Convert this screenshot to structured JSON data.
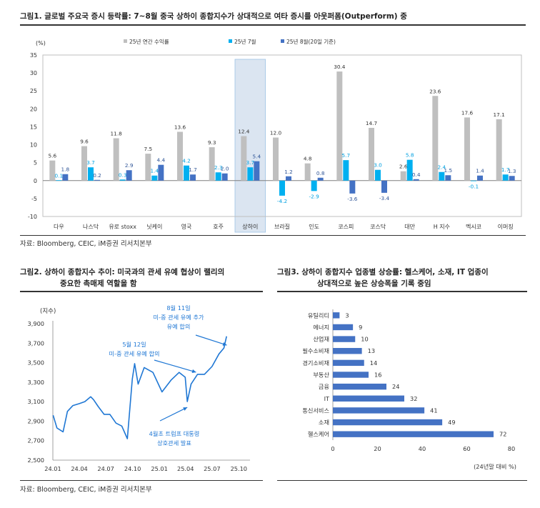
{
  "fig1": {
    "title": "그림1.  글로벌 주요국 증시 등락률: 7~8월 중국 상하이 종합지수가 상대적으로 여타 증시를 아웃퍼폼(Outperform) 중",
    "source": "자료: Bloomberg, CEIC, iM증권 리서치본부"
  },
  "fig2": {
    "title_line1": "그림2.  상하이 종합지수 추이: 미국과의 관세 유예 협상이 랠리의",
    "title_line2": "중요한 촉매제 역할을 함",
    "source": "자료: Bloomberg, CEIC, iM증권 리서치본부"
  },
  "fig3": {
    "title_line1": "그림3.  상하이 종합지수 업종별 상승률: 헬스케어, 소재, IT 업종이",
    "title_line2": "상대적으로 높은 상승폭을 기록 중임"
  },
  "colors": {
    "annual": "#bfbfbf",
    "july": "#00b0f0",
    "august": "#4472c4",
    "highlight": "#dbe5f1",
    "highlight_border": "#9dc3e6",
    "line": "#1f77d4"
  },
  "chart_data": [
    {
      "type": "bar",
      "unit": "(%)",
      "categories": [
        "다우",
        "나스닥",
        "유로 stoxx",
        "닛케이",
        "영국",
        "호주",
        "상하이",
        "브라질",
        "인도",
        "코스피",
        "코스닥",
        "대만",
        "H 지수",
        "멕시코",
        "이머징"
      ],
      "highlight_category": "상하이",
      "series": [
        {
          "name": "25년 연간 수익률",
          "values": [
            5.6,
            9.6,
            11.8,
            7.5,
            13.6,
            9.3,
            12.4,
            12.0,
            4.8,
            30.4,
            14.7,
            2.6,
            23.6,
            17.6,
            17.1
          ],
          "color": "#bfbfbf"
        },
        {
          "name": "25년 7월",
          "values": [
            0.1,
            3.7,
            0.3,
            1.4,
            4.2,
            2.3,
            3.7,
            -4.2,
            -2.9,
            5.7,
            3.0,
            5.8,
            2.4,
            -0.1,
            1.7
          ],
          "color": "#00b0f0"
        },
        {
          "name": "25년 8월(20일 기준)",
          "values": [
            1.8,
            0.2,
            2.9,
            4.4,
            1.7,
            2.0,
            5.4,
            1.2,
            0.8,
            -3.6,
            -3.4,
            0.4,
            1.5,
            1.4,
            1.3
          ],
          "color": "#4472c4"
        }
      ],
      "ylim": [
        -10,
        35
      ],
      "yticks": [
        -10,
        -5,
        0,
        5,
        10,
        15,
        20,
        25,
        30,
        35
      ],
      "legend": "top"
    },
    {
      "type": "line",
      "unit": "(지수)",
      "series": [
        {
          "name": "",
          "x": [
            "2024-01-02",
            "2024-01-15",
            "2024-02-05",
            "2024-02-20",
            "2024-03-10",
            "2024-04-01",
            "2024-04-20",
            "2024-05-10",
            "2024-05-20",
            "2024-06-05",
            "2024-06-25",
            "2024-07-15",
            "2024-08-05",
            "2024-08-25",
            "2024-09-13",
            "2024-09-30",
            "2024-10-08",
            "2024-10-20",
            "2024-11-10",
            "2024-12-10",
            "2025-01-10",
            "2025-02-10",
            "2025-03-10",
            "2025-03-31",
            "2025-04-07",
            "2025-04-20",
            "2025-05-12",
            "2025-06-05",
            "2025-07-01",
            "2025-07-25",
            "2025-08-11",
            "2025-08-20"
          ],
          "y": [
            2960,
            2830,
            2790,
            3000,
            3060,
            3080,
            3100,
            3150,
            3120,
            3050,
            2970,
            2970,
            2880,
            2850,
            2720,
            3330,
            3490,
            3280,
            3450,
            3400,
            3200,
            3320,
            3400,
            3350,
            3100,
            3280,
            3380,
            3380,
            3460,
            3590,
            3650,
            3770
          ]
        }
      ],
      "xticks": [
        "24.01",
        "24.04",
        "24.07",
        "24.10",
        "25.01",
        "25.04",
        "25.07",
        "25.10"
      ],
      "yticks": [
        "2,500",
        "2,700",
        "2,900",
        "3,100",
        "3,300",
        "3,500",
        "3,700",
        "3,900"
      ],
      "ylim": [
        2500,
        3900
      ],
      "annotations": [
        {
          "lines": [
            "8월 11일",
            "미-중 관세 유예 추가",
            "유예 합의"
          ],
          "x": "2025-08-11",
          "y": 3650
        },
        {
          "lines": [
            "5월 12일",
            "미-중 관세 유예 합의"
          ],
          "x": "2025-05-12",
          "y": 3380
        },
        {
          "lines": [
            "4월초 트럼프 대통령",
            "상호관세 발표"
          ],
          "x": "2025-04-07",
          "y": 3100
        }
      ]
    },
    {
      "type": "bar",
      "orientation": "horizontal",
      "categories": [
        "유틸리티",
        "에너지",
        "산업재",
        "필수소비재",
        "경기소비재",
        "부동산",
        "금융",
        "IT",
        "통신서비스",
        "소재",
        "헬스케어"
      ],
      "values": [
        3,
        9,
        10,
        13,
        14,
        16,
        24,
        32,
        41,
        49,
        72
      ],
      "xlim": [
        0,
        80
      ],
      "xticks": [
        0,
        20,
        40,
        60,
        80
      ],
      "xlabel": "(24년말 대비 %)",
      "color": "#4472c4"
    }
  ]
}
